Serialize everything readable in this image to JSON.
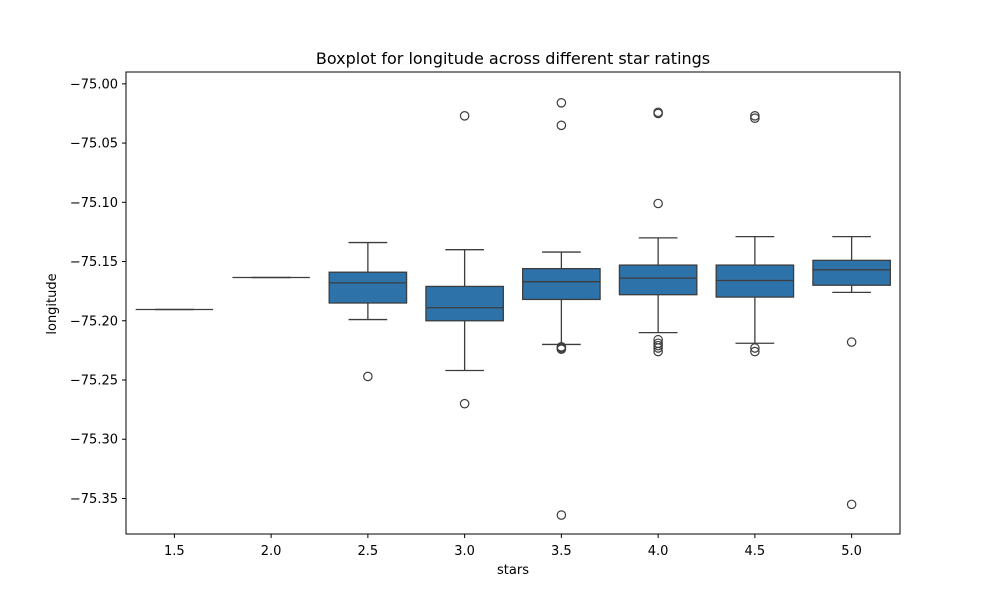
{
  "chart_data": {
    "type": "box",
    "title": "Boxplot for longitude across different star ratings",
    "xlabel": "stars",
    "ylabel": "longitude",
    "ylim": [
      -75.38,
      -74.99
    ],
    "yticks": [
      -75.0,
      -75.05,
      -75.1,
      -75.15,
      -75.2,
      -75.25,
      -75.3,
      -75.35
    ],
    "ytick_labels": [
      "−75.00",
      "−75.05",
      "−75.10",
      "−75.15",
      "−75.20",
      "−75.25",
      "−75.30",
      "−75.35"
    ],
    "grid": false,
    "legend": "none",
    "box_color": "#2e72aa",
    "edge_color": "#3d3d3d",
    "categories": [
      "1.5",
      "2.0",
      "2.5",
      "3.0",
      "3.5",
      "4.0",
      "4.5",
      "5.0"
    ],
    "boxes": [
      {
        "category": "1.5",
        "whisker_low": -75.1905,
        "q1": -75.1905,
        "median": -75.1905,
        "q3": -75.1905,
        "whisker_high": -75.1905,
        "outliers": []
      },
      {
        "category": "2.0",
        "whisker_low": -75.1635,
        "q1": -75.1635,
        "median": -75.1635,
        "q3": -75.1635,
        "whisker_high": -75.1635,
        "outliers": []
      },
      {
        "category": "2.5",
        "whisker_low": -75.199,
        "q1": -75.185,
        "median": -75.168,
        "q3": -75.159,
        "whisker_high": -75.134,
        "outliers": [
          -75.247
        ]
      },
      {
        "category": "3.0",
        "whisker_low": -75.242,
        "q1": -75.2,
        "median": -75.189,
        "q3": -75.171,
        "whisker_high": -75.14,
        "outliers": [
          -75.027,
          -75.27
        ]
      },
      {
        "category": "3.5",
        "whisker_low": -75.22,
        "q1": -75.182,
        "median": -75.167,
        "q3": -75.156,
        "whisker_high": -75.142,
        "outliers": [
          -75.016,
          -75.035,
          -75.222,
          -75.223,
          -75.224,
          -75.364
        ]
      },
      {
        "category": "4.0",
        "whisker_low": -75.21,
        "q1": -75.178,
        "median": -75.164,
        "q3": -75.153,
        "whisker_high": -75.13,
        "outliers": [
          -75.024,
          -75.025,
          -75.101,
          -75.216,
          -75.219,
          -75.221,
          -75.223,
          -75.226
        ]
      },
      {
        "category": "4.5",
        "whisker_low": -75.219,
        "q1": -75.18,
        "median": -75.166,
        "q3": -75.153,
        "whisker_high": -75.129,
        "outliers": [
          -75.027,
          -75.029,
          -75.223,
          -75.226
        ]
      },
      {
        "category": "5.0",
        "whisker_low": -75.176,
        "q1": -75.17,
        "median": -75.157,
        "q3": -75.149,
        "whisker_high": -75.129,
        "outliers": [
          -75.218,
          -75.355
        ]
      }
    ]
  }
}
